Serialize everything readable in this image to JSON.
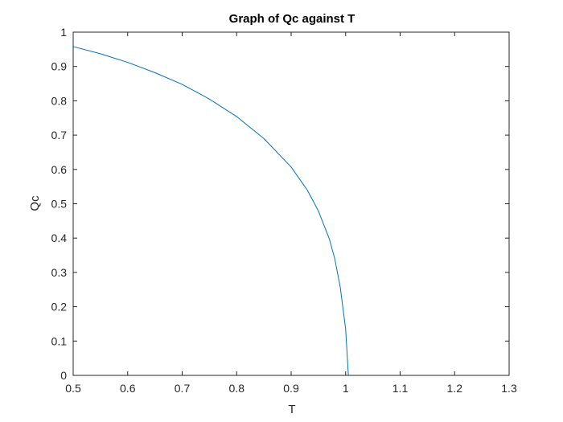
{
  "chart_data": {
    "type": "line",
    "title": "Graph of Qc against T",
    "xlabel": "T",
    "ylabel": "Qc",
    "xlim": [
      0.5,
      1.3
    ],
    "ylim": [
      0,
      1
    ],
    "xticks": [
      0.5,
      0.6,
      0.7,
      0.8,
      0.9,
      1.0,
      1.1,
      1.2,
      1.3
    ],
    "xtick_labels": [
      "0.5",
      "0.6",
      "0.7",
      "0.8",
      "0.9",
      "1",
      "1.1",
      "1.2",
      "1.3"
    ],
    "yticks": [
      0,
      0.1,
      0.2,
      0.3,
      0.4,
      0.5,
      0.6,
      0.7,
      0.8,
      0.9,
      1
    ],
    "ytick_labels": [
      "0",
      "0.1",
      "0.2",
      "0.3",
      "0.4",
      "0.5",
      "0.6",
      "0.7",
      "0.8",
      "0.9",
      "1"
    ],
    "grid": false,
    "box": true,
    "series": [
      {
        "color": "#0072bd",
        "x": [
          0.5,
          0.55,
          0.6,
          0.65,
          0.7,
          0.75,
          0.8,
          0.85,
          0.9,
          0.93,
          0.95,
          0.97,
          0.98,
          0.99,
          1.0,
          1.005,
          1.01,
          1.1,
          1.2,
          1.3
        ],
        "y": [
          0.958,
          0.937,
          0.912,
          0.882,
          0.848,
          0.805,
          0.754,
          0.69,
          0.607,
          0.539,
          0.479,
          0.398,
          0.34,
          0.258,
          0.135,
          0.0,
          0.0,
          0.0,
          0.0,
          0.0
        ]
      }
    ]
  }
}
